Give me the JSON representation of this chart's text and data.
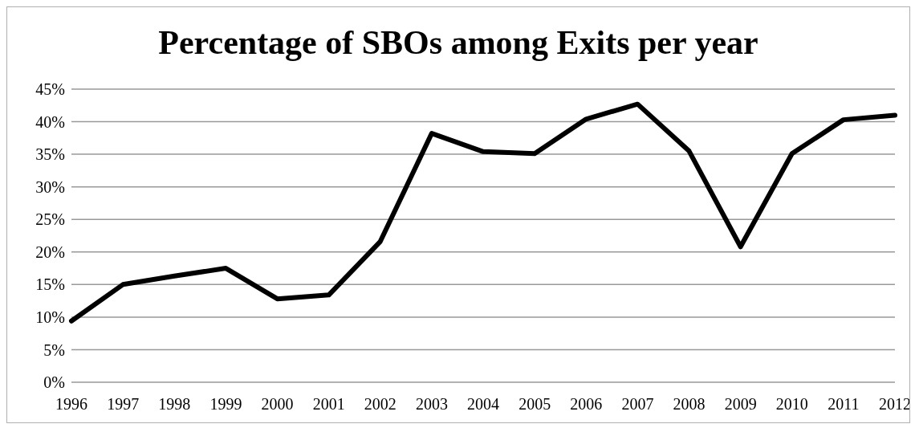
{
  "chart_data": {
    "type": "line",
    "title": "Percentage of SBOs among Exits per year",
    "categories": [
      "1996",
      "1997",
      "1998",
      "1999",
      "2000",
      "2001",
      "2002",
      "2003",
      "2004",
      "2005",
      "2006",
      "2007",
      "2008",
      "2009",
      "2010",
      "2011",
      "2012"
    ],
    "series": [
      {
        "color": "#000000",
        "values": [
          9.4,
          15.0,
          16.3,
          17.5,
          12.8,
          13.4,
          21.6,
          38.2,
          35.4,
          35.1,
          40.4,
          42.7,
          35.5,
          20.8,
          35.1,
          40.3,
          41.0
        ]
      }
    ],
    "ylim": [
      0,
      45
    ],
    "yticks": [
      {
        "value": 0,
        "label": "0%"
      },
      {
        "value": 5,
        "label": "5%"
      },
      {
        "value": 10,
        "label": "10%"
      },
      {
        "value": 15,
        "label": "15%"
      },
      {
        "value": 20,
        "label": "20%"
      },
      {
        "value": 25,
        "label": "25%"
      },
      {
        "value": 30,
        "label": "30%"
      },
      {
        "value": 35,
        "label": "35%"
      },
      {
        "value": 40,
        "label": "40%"
      },
      {
        "value": 45,
        "label": "45%"
      }
    ],
    "grid": "y",
    "legend": false,
    "marker": "none",
    "line_style": "solid"
  }
}
